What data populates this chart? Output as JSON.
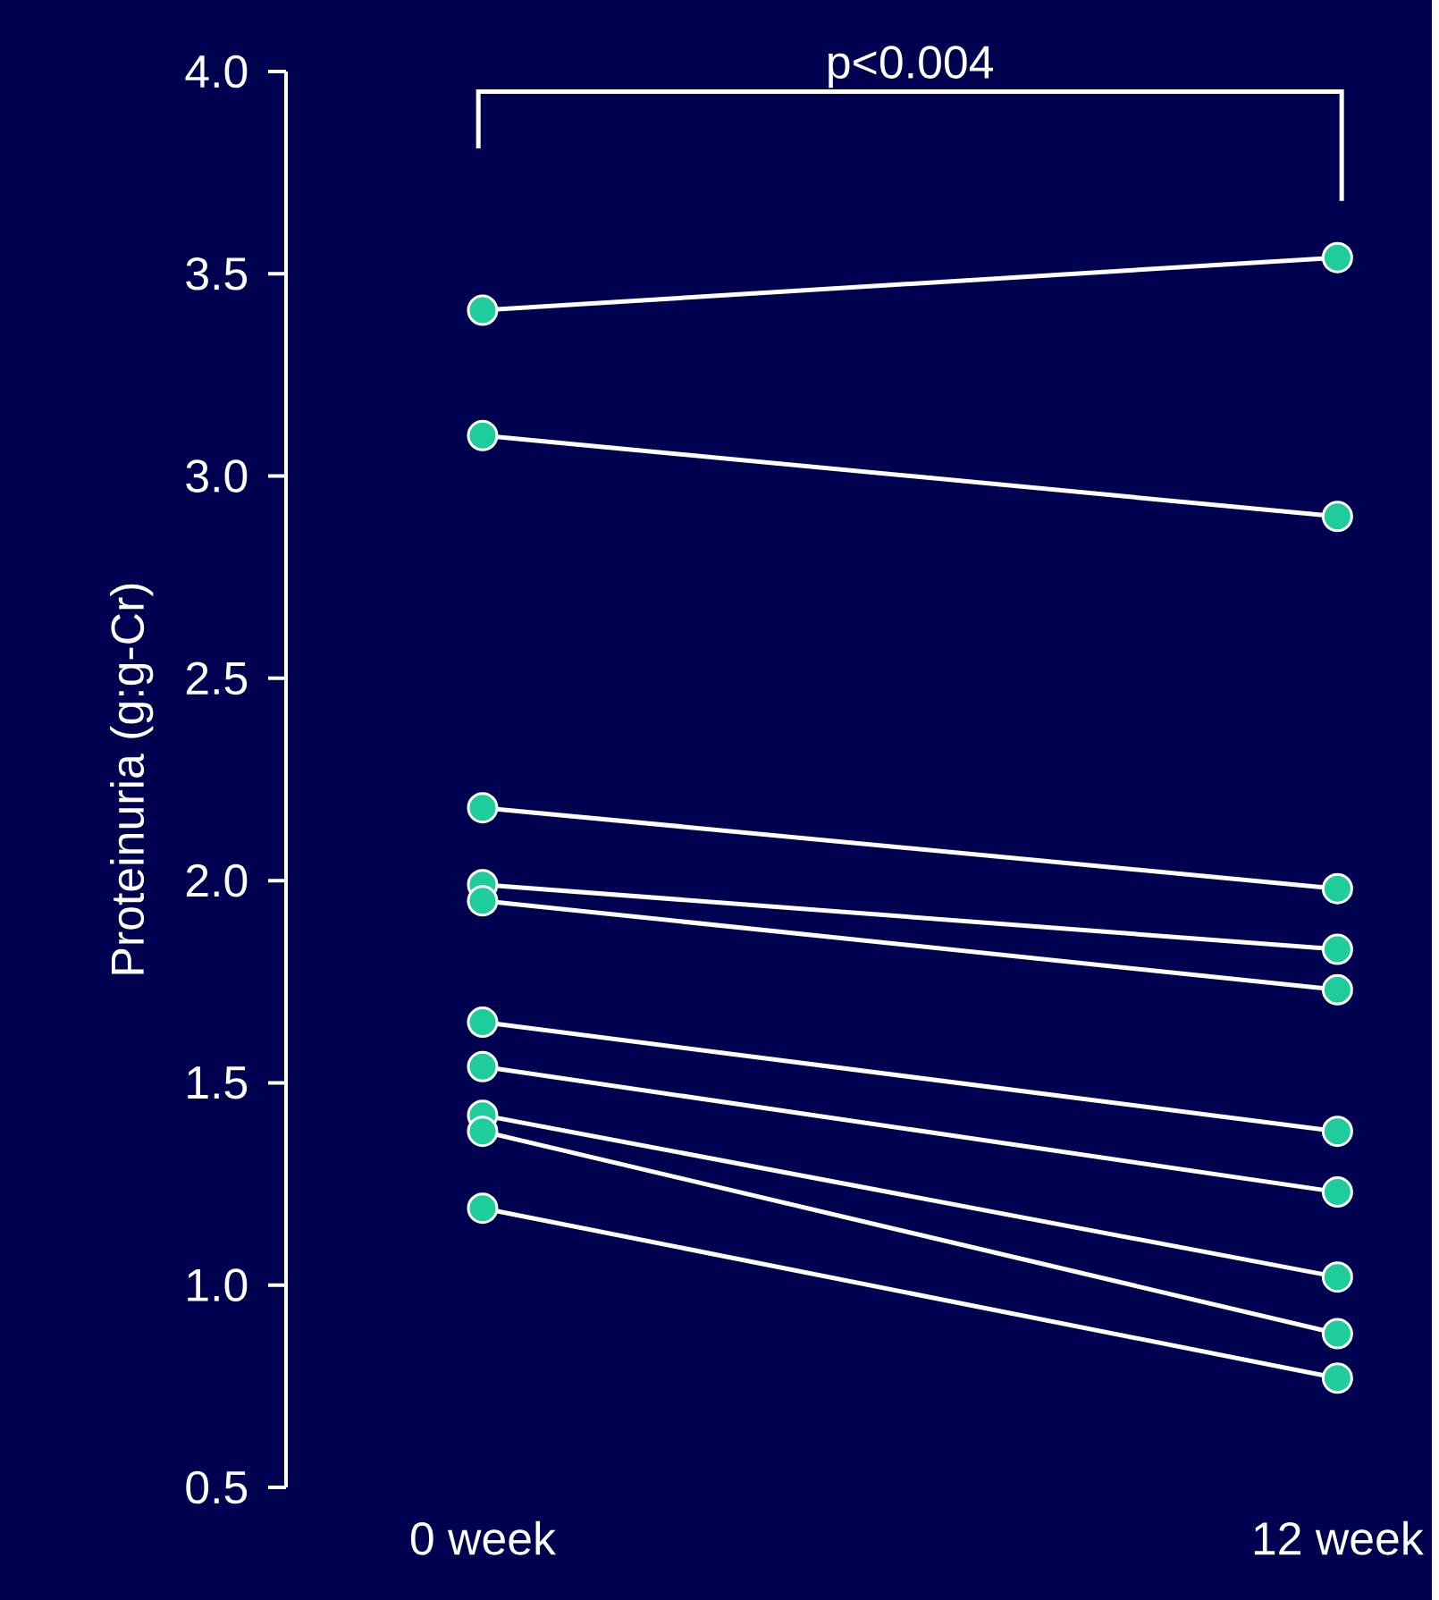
{
  "chart_data": {
    "type": "line",
    "ylabel": "Proteinuria (g:g-Cr)",
    "categories": [
      "0 week",
      "12 week"
    ],
    "ylim": [
      0.5,
      4.0
    ],
    "yticks": [
      {
        "value": 0.5,
        "label": "0.5"
      },
      {
        "value": 1,
        "label": "1.0"
      },
      {
        "value": 1.5,
        "label": "1.5"
      },
      {
        "value": 2,
        "label": "2.0"
      },
      {
        "value": 2.5,
        "label": "2.5"
      },
      {
        "value": 3,
        "label": "3.0"
      },
      {
        "value": 3.5,
        "label": "3.5"
      },
      {
        "value": 4,
        "label": "4.0"
      }
    ],
    "marker": "circle",
    "annotations": [
      "p<0.004"
    ],
    "series": [
      {
        "color": "#1ecc9c",
        "values": [
          3.41,
          3.54
        ]
      },
      {
        "color": "#1ecc9c",
        "values": [
          3.1,
          2.9
        ]
      },
      {
        "color": "#1ecc9c",
        "values": [
          2.18,
          1.98
        ]
      },
      {
        "color": "#1ecc9c",
        "values": [
          1.99,
          1.83
        ]
      },
      {
        "color": "#1ecc9c",
        "values": [
          1.95,
          1.73
        ]
      },
      {
        "color": "#1ecc9c",
        "values": [
          1.65,
          1.38
        ]
      },
      {
        "color": "#1ecc9c",
        "values": [
          1.54,
          1.23
        ]
      },
      {
        "color": "#1ecc9c",
        "values": [
          1.42,
          1.02
        ]
      },
      {
        "color": "#1ecc9c",
        "values": [
          1.38,
          0.88
        ]
      },
      {
        "color": "#1ecc9c",
        "values": [
          1.19,
          0.77
        ]
      }
    ]
  }
}
